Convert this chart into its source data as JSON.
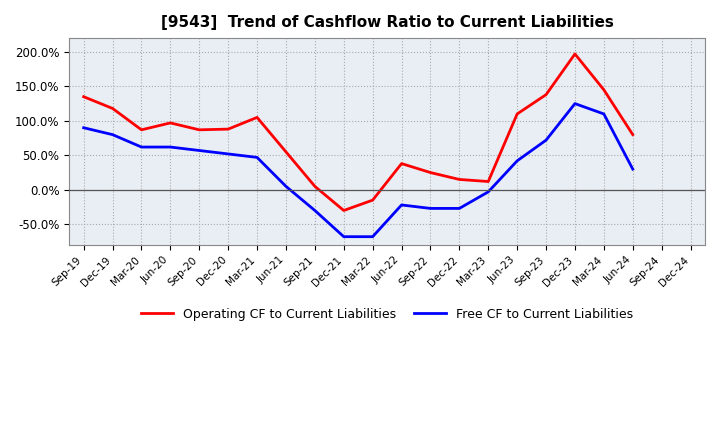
{
  "title": "[9543]  Trend of Cashflow Ratio to Current Liabilities",
  "x_labels": [
    "Sep-19",
    "Dec-19",
    "Mar-20",
    "Jun-20",
    "Sep-20",
    "Dec-20",
    "Mar-21",
    "Jun-21",
    "Sep-21",
    "Dec-21",
    "Mar-22",
    "Jun-22",
    "Sep-22",
    "Dec-22",
    "Mar-23",
    "Jun-23",
    "Sep-23",
    "Dec-23",
    "Mar-24",
    "Jun-24",
    "Sep-24",
    "Dec-24"
  ],
  "operating_cf": [
    135,
    118,
    87,
    97,
    87,
    88,
    105,
    55,
    5,
    -30,
    -15,
    38,
    25,
    15,
    12,
    110,
    138,
    197,
    145,
    80,
    null,
    null
  ],
  "free_cf": [
    90,
    80,
    62,
    62,
    57,
    52,
    47,
    5,
    -30,
    -68,
    -68,
    -22,
    -27,
    -27,
    -3,
    42,
    72,
    125,
    110,
    30,
    null,
    null
  ],
  "operating_color": "#FF0000",
  "free_color": "#0000FF",
  "ylim": [
    -80,
    220
  ],
  "yticks": [
    -50,
    0,
    50,
    100,
    150,
    200
  ],
  "ytick_labels": [
    "-50.0%",
    "0.0%",
    "50.0%",
    "100.0%",
    "150.0%",
    "200.0%"
  ],
  "background_color": "#FFFFFF",
  "plot_bg_color": "#E8EEF4",
  "grid_color": "#AAAAAA",
  "legend_items": [
    "Operating CF to Current Liabilities",
    "Free CF to Current Liabilities"
  ]
}
